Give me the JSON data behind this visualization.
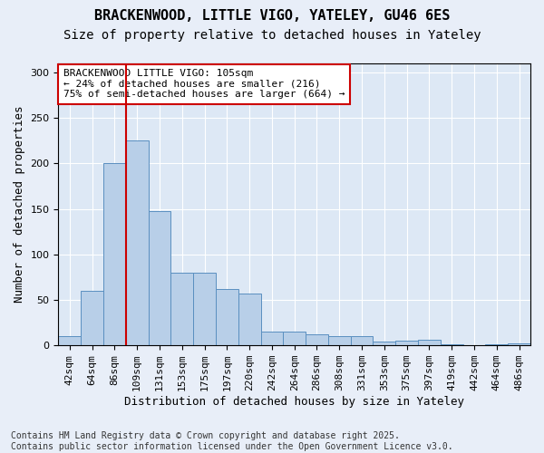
{
  "title1": "BRACKENWOOD, LITTLE VIGO, YATELEY, GU46 6ES",
  "title2": "Size of property relative to detached houses in Yateley",
  "xlabel": "Distribution of detached houses by size in Yateley",
  "ylabel": "Number of detached properties",
  "bar_labels": [
    "42sqm",
    "64sqm",
    "86sqm",
    "109sqm",
    "131sqm",
    "153sqm",
    "175sqm",
    "197sqm",
    "220sqm",
    "242sqm",
    "264sqm",
    "286sqm",
    "308sqm",
    "331sqm",
    "353sqm",
    "375sqm",
    "397sqm",
    "419sqm",
    "442sqm",
    "464sqm",
    "486sqm"
  ],
  "bar_values": [
    10,
    60,
    200,
    225,
    148,
    80,
    80,
    62,
    57,
    15,
    15,
    12,
    10,
    10,
    4,
    5,
    6,
    1,
    0,
    1,
    2
  ],
  "bar_color": "#b8cfe8",
  "bar_edge_color": "#5a8fc0",
  "background_color": "#dde8f5",
  "grid_color": "#ffffff",
  "vline_x_index": 3,
  "vline_color": "#cc0000",
  "annotation_text": "BRACKENWOOD LITTLE VIGO: 105sqm\n← 24% of detached houses are smaller (216)\n75% of semi-detached houses are larger (664) →",
  "annotation_box_color": "#ffffff",
  "annotation_box_edge": "#cc0000",
  "footer": "Contains HM Land Registry data © Crown copyright and database right 2025.\nContains public sector information licensed under the Open Government Licence v3.0.",
  "ylim": [
    0,
    310
  ],
  "title1_fontsize": 11,
  "title2_fontsize": 10,
  "xlabel_fontsize": 9,
  "ylabel_fontsize": 9,
  "annotation_fontsize": 8,
  "footer_fontsize": 7
}
